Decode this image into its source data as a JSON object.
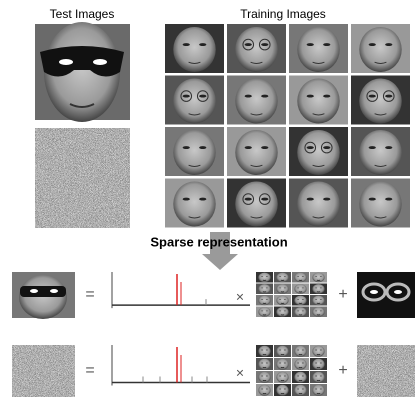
{
  "test_images_label": "Test Images",
  "training_images_label": "Training Images",
  "arrow_label": "Sparse representation",
  "rows": [
    {
      "equals": "=",
      "times": "×",
      "plus": "+"
    },
    {
      "equals": "=",
      "times": "×",
      "plus": "+"
    }
  ]
}
